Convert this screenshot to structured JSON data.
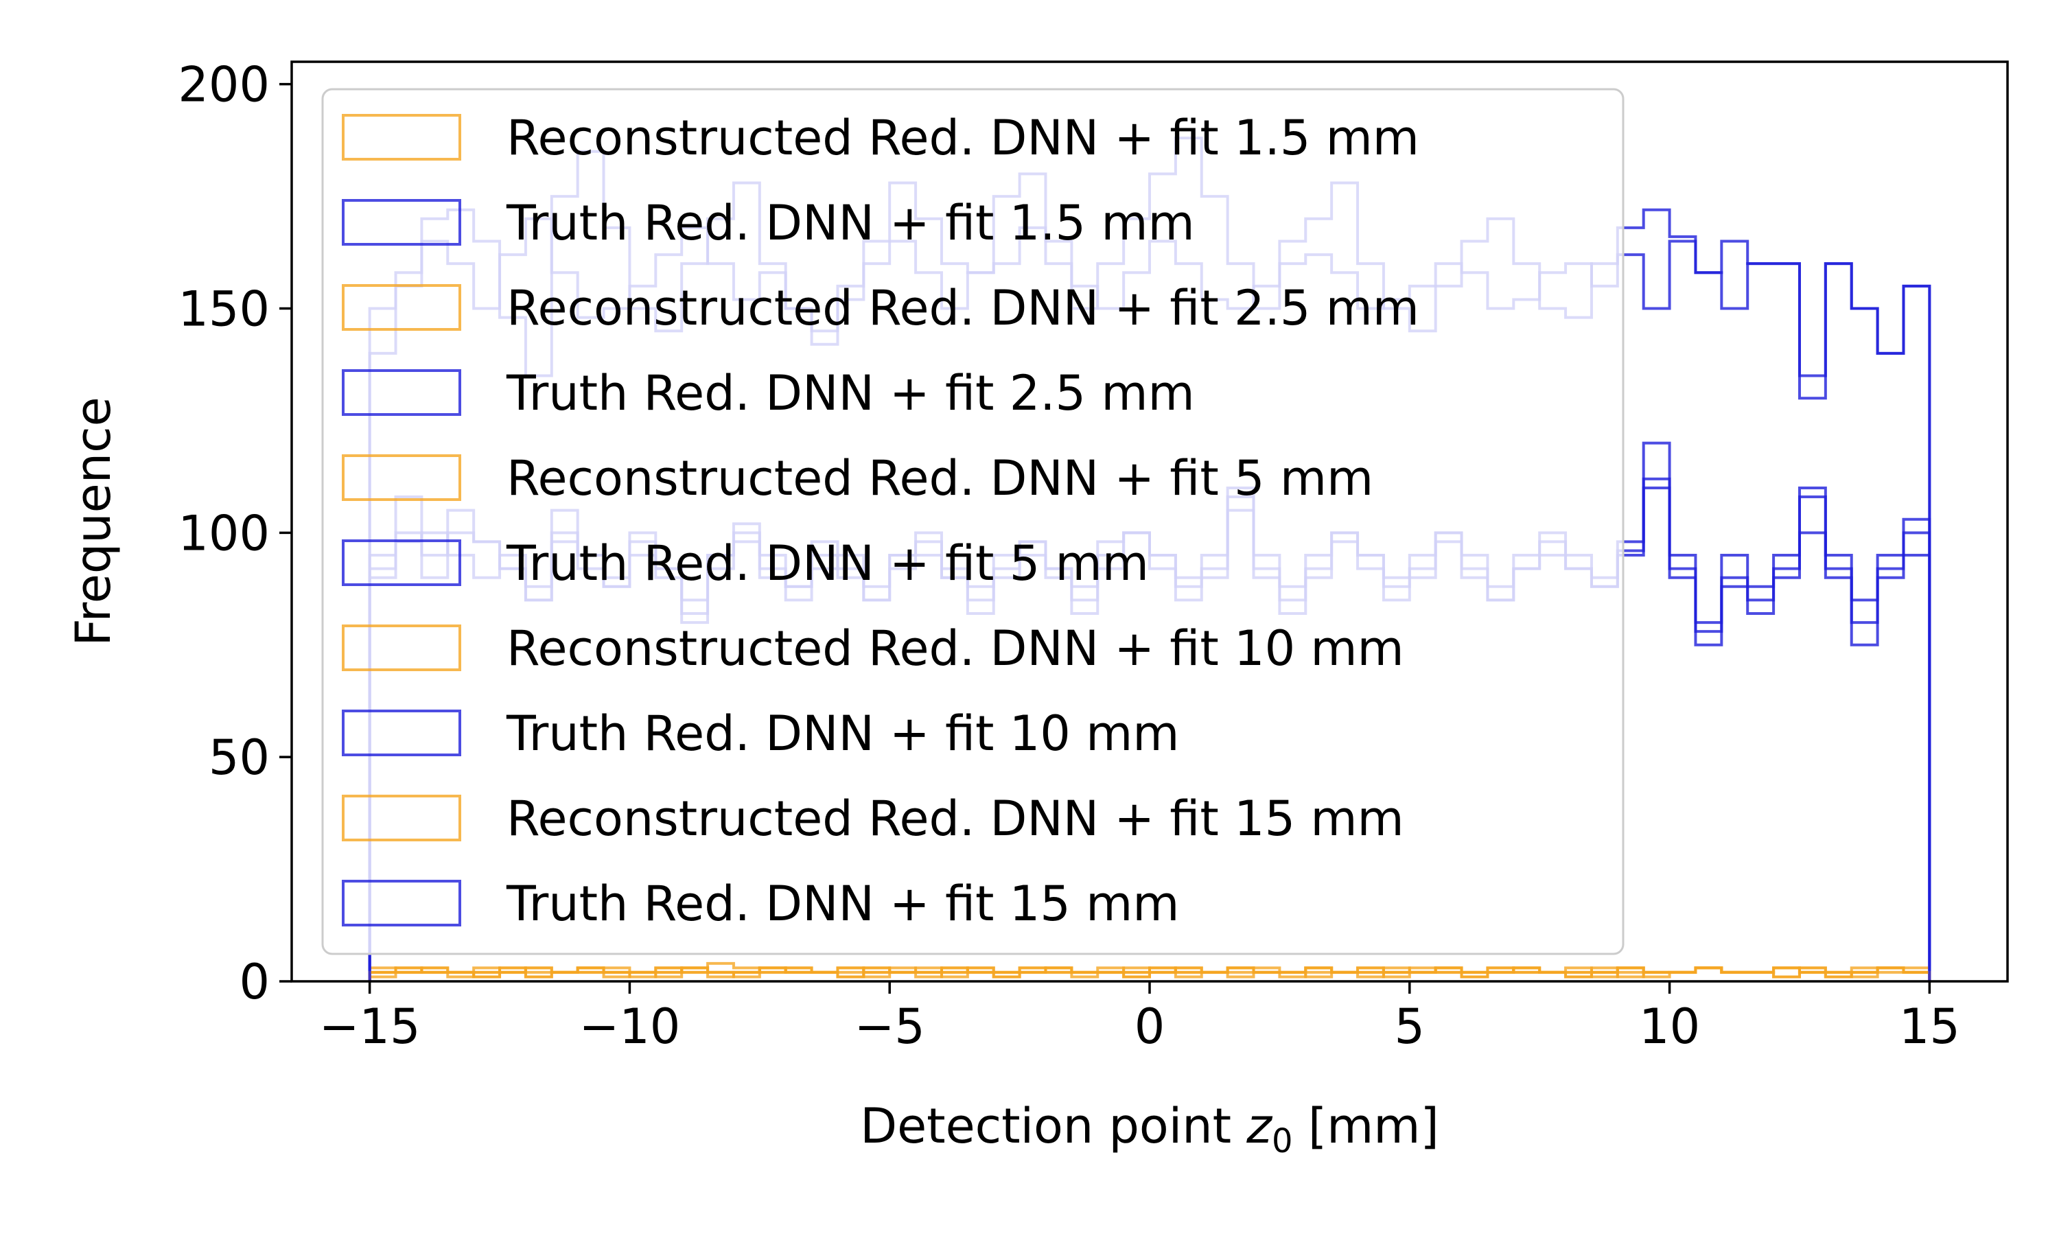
{
  "chart_data": {
    "type": "histogram",
    "title": "",
    "xlabel_main": "Detection point ",
    "xlabel_var": "z",
    "xlabel_sub": "0",
    "xlabel_unit": " [mm]",
    "ylabel": "Frequence",
    "xlim": [
      -16.5,
      16.5
    ],
    "ylim": [
      0,
      205
    ],
    "xticks": [
      -15,
      -10,
      -5,
      0,
      5,
      10,
      15
    ],
    "xtick_labels": [
      "−15",
      "−10",
      "−5",
      "0",
      "5",
      "10",
      "15"
    ],
    "yticks": [
      0,
      50,
      100,
      150,
      200
    ],
    "ytick_labels": [
      "0",
      "50",
      "100",
      "150",
      "200"
    ],
    "bins": {
      "start": -15,
      "end": 15,
      "count": 60
    },
    "legend_placement": "upper-left",
    "colors": {
      "reconstructed": "#f5a623",
      "truth": "#1f1fdb"
    },
    "series": [
      {
        "name": "Reconstructed Red. DNN + fit 1.5 mm",
        "kind": "reconstructed",
        "opacity": 0.8,
        "values": [
          3,
          2,
          2,
          1,
          2,
          3,
          1,
          2,
          2,
          1,
          2,
          3,
          2,
          4,
          3,
          2,
          3,
          2,
          1,
          2,
          3,
          2,
          2,
          3,
          1,
          2,
          3,
          2,
          2,
          1,
          2,
          3,
          2,
          2,
          3,
          1,
          2,
          2,
          3,
          2,
          2,
          3,
          1,
          2,
          3,
          2,
          2,
          3,
          1,
          2,
          2,
          3,
          2,
          2,
          1,
          3,
          2,
          2,
          3,
          2
        ]
      },
      {
        "name": "Truth Red. DNN + fit 1.5 mm",
        "kind": "truth",
        "opacity": 0.8,
        "values": [
          140,
          155,
          170,
          172,
          165,
          148,
          135,
          175,
          185,
          168,
          150,
          145,
          160,
          170,
          178,
          160,
          150,
          142,
          155,
          165,
          178,
          170,
          160,
          158,
          175,
          180,
          165,
          150,
          160,
          170,
          180,
          188,
          175,
          160,
          150,
          165,
          170,
          178,
          160,
          150,
          145,
          155,
          165,
          170,
          160,
          150,
          148,
          160,
          168,
          172,
          166,
          158,
          165,
          160,
          160,
          130,
          160,
          150,
          140,
          155
        ]
      },
      {
        "name": "Reconstructed Red. DNN + fit 2.5 mm",
        "kind": "reconstructed",
        "opacity": 0.8,
        "values": [
          2,
          3,
          2,
          2,
          1,
          2,
          3,
          2,
          3,
          2,
          1,
          2,
          3,
          2,
          2,
          3,
          2,
          2,
          1,
          3,
          2,
          2,
          3,
          2,
          1,
          2,
          3,
          2,
          2,
          3,
          2,
          3,
          2,
          1,
          2,
          2,
          3,
          2,
          2,
          3,
          2,
          2,
          1,
          3,
          2,
          2,
          3,
          2,
          2,
          1,
          2,
          3,
          2,
          2,
          3,
          2,
          1,
          3,
          2,
          2
        ]
      },
      {
        "name": "Truth Red. DNN + fit 2.5 mm",
        "kind": "truth",
        "opacity": 0.8,
        "values": [
          150,
          158,
          165,
          160,
          150,
          162,
          170,
          158,
          148,
          150,
          155,
          162,
          168,
          160,
          152,
          158,
          150,
          145,
          152,
          160,
          165,
          158,
          150,
          158,
          160,
          168,
          160,
          155,
          150,
          158,
          165,
          160,
          152,
          150,
          155,
          160,
          162,
          158,
          150,
          152,
          155,
          160,
          158,
          150,
          152,
          158,
          160,
          155,
          162,
          150,
          165,
          158,
          150,
          160,
          160,
          135,
          160,
          150,
          140,
          155
        ]
      },
      {
        "name": "Reconstructed Red. DNN + fit 5 mm",
        "kind": "reconstructed",
        "opacity": 0.8,
        "values": [
          1,
          2,
          3,
          2,
          2,
          3,
          2,
          2,
          3,
          2,
          2,
          1,
          3,
          2,
          2,
          3,
          2,
          2,
          3,
          1,
          2,
          2,
          3,
          2,
          2,
          3,
          2,
          1,
          2,
          2,
          3,
          2,
          2,
          3,
          2,
          2,
          1,
          2,
          3,
          2,
          2,
          3,
          2,
          2,
          3,
          2,
          1,
          2,
          3,
          2,
          2,
          3,
          2,
          2,
          1,
          3,
          2,
          2,
          3,
          3
        ]
      },
      {
        "name": "Truth Red. DNN + fit 5 mm",
        "kind": "truth",
        "opacity": 0.8,
        "values": [
          90,
          108,
          95,
          100,
          98,
          92,
          85,
          105,
          95,
          88,
          100,
          92,
          80,
          95,
          102,
          90,
          85,
          98,
          92,
          88,
          95,
          100,
          90,
          85,
          92,
          98,
          90,
          82,
          95,
          100,
          92,
          88,
          95,
          110,
          90,
          85,
          92,
          100,
          95,
          88,
          90,
          100,
          92,
          85,
          95,
          100,
          92,
          88,
          95,
          110,
          92,
          80,
          95,
          88,
          90,
          100,
          92,
          85,
          95,
          103
        ]
      },
      {
        "name": "Reconstructed Red. DNN + fit 10 mm",
        "kind": "reconstructed",
        "opacity": 0.8,
        "values": [
          2,
          3,
          2,
          2,
          3,
          2,
          1,
          2,
          3,
          2,
          2,
          3,
          2,
          2,
          1,
          3,
          2,
          2,
          3,
          2,
          2,
          3,
          1,
          2,
          2,
          3,
          2,
          2,
          3,
          2,
          2,
          1,
          2,
          3,
          2,
          2,
          3,
          2,
          2,
          1,
          3,
          2,
          2,
          3,
          2,
          2,
          1,
          2,
          3,
          2,
          2,
          3,
          2,
          2,
          3,
          2,
          1,
          2,
          3,
          2
        ]
      },
      {
        "name": "Truth Red. DNN + fit 10 mm",
        "kind": "truth",
        "opacity": 0.8,
        "values": [
          95,
          100,
          90,
          105,
          98,
          92,
          88,
          100,
          95,
          90,
          98,
          92,
          85,
          95,
          100,
          92,
          88,
          95,
          90,
          85,
          95,
          98,
          92,
          88,
          90,
          95,
          92,
          85,
          98,
          100,
          95,
          90,
          92,
          105,
          95,
          88,
          90,
          98,
          95,
          90,
          92,
          100,
          95,
          88,
          92,
          98,
          95,
          90,
          98,
          112,
          95,
          78,
          90,
          85,
          95,
          108,
          95,
          80,
          92,
          100
        ]
      },
      {
        "name": "Reconstructed Red. DNN + fit 15 mm",
        "kind": "reconstructed",
        "opacity": 0.8,
        "values": [
          2,
          2,
          3,
          2,
          1,
          2,
          3,
          2,
          2,
          3,
          2,
          2,
          3,
          1,
          2,
          2,
          3,
          2,
          2,
          3,
          2,
          1,
          2,
          3,
          2,
          2,
          3,
          2,
          2,
          1,
          3,
          2,
          2,
          3,
          2,
          2,
          3,
          2,
          1,
          2,
          2,
          3,
          2,
          2,
          3,
          2,
          2,
          1,
          3,
          2,
          2,
          3,
          2,
          2,
          3,
          2,
          2,
          1,
          3,
          2
        ]
      },
      {
        "name": "Truth Red. DNN + fit 15 mm",
        "kind": "truth",
        "opacity": 0.8,
        "values": [
          92,
          98,
          100,
          95,
          90,
          95,
          85,
          98,
          92,
          88,
          95,
          90,
          82,
          92,
          98,
          95,
          88,
          92,
          95,
          85,
          92,
          95,
          90,
          82,
          95,
          98,
          92,
          88,
          92,
          100,
          95,
          85,
          90,
          108,
          92,
          82,
          95,
          100,
          92,
          85,
          95,
          98,
          90,
          85,
          92,
          95,
          92,
          88,
          96,
          120,
          90,
          75,
          88,
          82,
          92,
          110,
          90,
          75,
          90,
          95
        ]
      }
    ]
  }
}
